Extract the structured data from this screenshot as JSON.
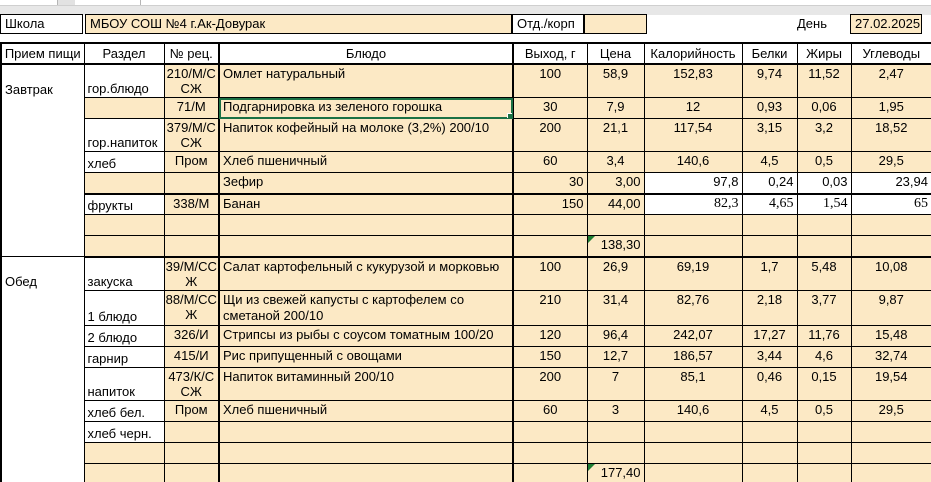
{
  "colors": {
    "cell_fill": "#fce9c5",
    "selection_green": "#1b7145",
    "corner_triangle_green": "#1e7e34",
    "grid_border": "#000000"
  },
  "topbar": {
    "school_label": "Школа",
    "school_value": "МБОУ СОШ №4 г.Ак-Довурак",
    "dept_label": "Отд./корп",
    "dept_value": "",
    "day_label": "День",
    "day_value": "27.02.2025"
  },
  "table": {
    "columns": [
      "Прием пищи",
      "Раздел",
      "№ рец.",
      "Блюдо",
      "Выход, г",
      "Цена",
      "Калорийность",
      "Белки",
      "Жиры",
      "Углеводы"
    ],
    "breakfast_total_price": "138,30",
    "lunch_total_price": "177,40",
    "rows": [
      {
        "meal": {
          "label": "Завтрак",
          "span": 8
        },
        "section": "гор.блюдо",
        "sectionWhite": true,
        "recipe": "210/М/ССЖ",
        "dish": "Омлет натуральный",
        "out": "100",
        "price": "58,9",
        "kcal": "152,83",
        "prot": "9,74",
        "fat": "11,52",
        "carb": "2,47",
        "tall": true
      },
      {
        "section": "",
        "recipe": "71/М",
        "dish": "Подгарнировка из зеленого горошка",
        "out": "30",
        "price": "7,9",
        "kcal": "12",
        "prot": "0,93",
        "fat": "0,06",
        "carb": "1,95",
        "selected": true
      },
      {
        "section": "гор.напиток",
        "sectionWhite": true,
        "recipe": "379/М/ССЖ",
        "dish": "Напиток кофейный на молоке (3,2%) 200/10",
        "out": "200",
        "price": "21,1",
        "kcal": "117,54",
        "prot": "3,15",
        "fat": "3,2",
        "carb": "18,52",
        "tall": true
      },
      {
        "section": "хлеб",
        "sectionWhite": true,
        "recipe": "Пром",
        "dish": "Хлеб пшеничный",
        "out": "60",
        "price": "3,4",
        "kcal": "140,6",
        "prot": "4,5",
        "fat": "0,5",
        "carb": "29,5"
      },
      {
        "section": "",
        "recipe": "",
        "dish": "Зефир",
        "out": "30",
        "price": "3,00",
        "kcal": "97,8",
        "prot": "0,24",
        "fat": "0,03",
        "carb": "23,94",
        "whiteNutri": true,
        "alignRight": true,
        "thickBottom": true
      },
      {
        "section": "фрукты",
        "sectionWhite": true,
        "recipe": "338/М",
        "dish": "Банан",
        "out": "150",
        "price": "44,00",
        "kcal": "82,3",
        "prot": "4,65",
        "fat": "1,54",
        "carb": "65",
        "whiteNutri": true,
        "alignRight": true,
        "serifNutri": true
      },
      {
        "section": "",
        "recipe": "",
        "dish": "",
        "out": "",
        "price": "",
        "kcal": "",
        "prot": "",
        "fat": "",
        "carb": ""
      },
      {
        "section": "",
        "recipe": "",
        "dish": "",
        "out": "",
        "price": "138,30",
        "kcal": "",
        "prot": "",
        "fat": "",
        "carb": "",
        "totalRow": true,
        "thickBottom": true
      },
      {
        "meal": {
          "label": "Обед",
          "span": 9
        },
        "section": "закуска",
        "sectionWhite": true,
        "recipe": "39/М/ССЖ",
        "dish": "Салат картофельный с кукурузой и морковью",
        "out": "100",
        "price": "26,9",
        "kcal": "69,19",
        "prot": "1,7",
        "fat": "5,48",
        "carb": "10,08",
        "tall": true
      },
      {
        "section": "1 блюдо",
        "sectionWhite": true,
        "recipe": "88/М/ССЖ",
        "dish": "Щи из свежей капусты с картофелем со сметаной 200/10",
        "out": "210",
        "price": "31,4",
        "kcal": "82,76",
        "prot": "2,18",
        "fat": "3,77",
        "carb": "9,87",
        "tall": true
      },
      {
        "section": "2 блюдо",
        "sectionWhite": true,
        "recipe": "326/И",
        "dish": "Стрипсы из рыбы с соусом томатным 100/20",
        "out": "120",
        "price": "96,4",
        "kcal": "242,07",
        "prot": "17,27",
        "fat": "11,76",
        "carb": "15,48"
      },
      {
        "section": "гарнир",
        "sectionWhite": true,
        "recipe": "415/И",
        "dish": "Рис припущенный с овощами",
        "out": "150",
        "price": "12,7",
        "kcal": "186,57",
        "prot": "3,44",
        "fat": "4,6",
        "carb": "32,74"
      },
      {
        "section": "напиток",
        "sectionWhite": true,
        "recipe": "473/К/ССЖ",
        "dish": "Напиток витаминный 200/10",
        "out": "200",
        "price": "7",
        "kcal": "85,1",
        "prot": "0,46",
        "fat": "0,15",
        "carb": "19,54",
        "tall": true
      },
      {
        "section": "хлеб бел.",
        "sectionWhite": true,
        "recipe": "Пром",
        "dish": "Хлеб пшеничный",
        "out": "60",
        "price": "3",
        "kcal": "140,6",
        "prot": "4,5",
        "fat": "0,5",
        "carb": "29,5"
      },
      {
        "section": "хлеб черн.",
        "sectionWhite": true,
        "recipe": "",
        "dish": "",
        "out": "",
        "price": "",
        "kcal": "",
        "prot": "",
        "fat": "",
        "carb": ""
      },
      {
        "section": "",
        "recipe": "",
        "dish": "",
        "out": "",
        "price": "",
        "kcal": "",
        "prot": "",
        "fat": "",
        "carb": ""
      },
      {
        "section": "",
        "recipe": "",
        "dish": "",
        "out": "",
        "price": "177,40",
        "kcal": "",
        "prot": "",
        "fat": "",
        "carb": "",
        "totalRow": true,
        "thickBottom": true
      }
    ]
  }
}
